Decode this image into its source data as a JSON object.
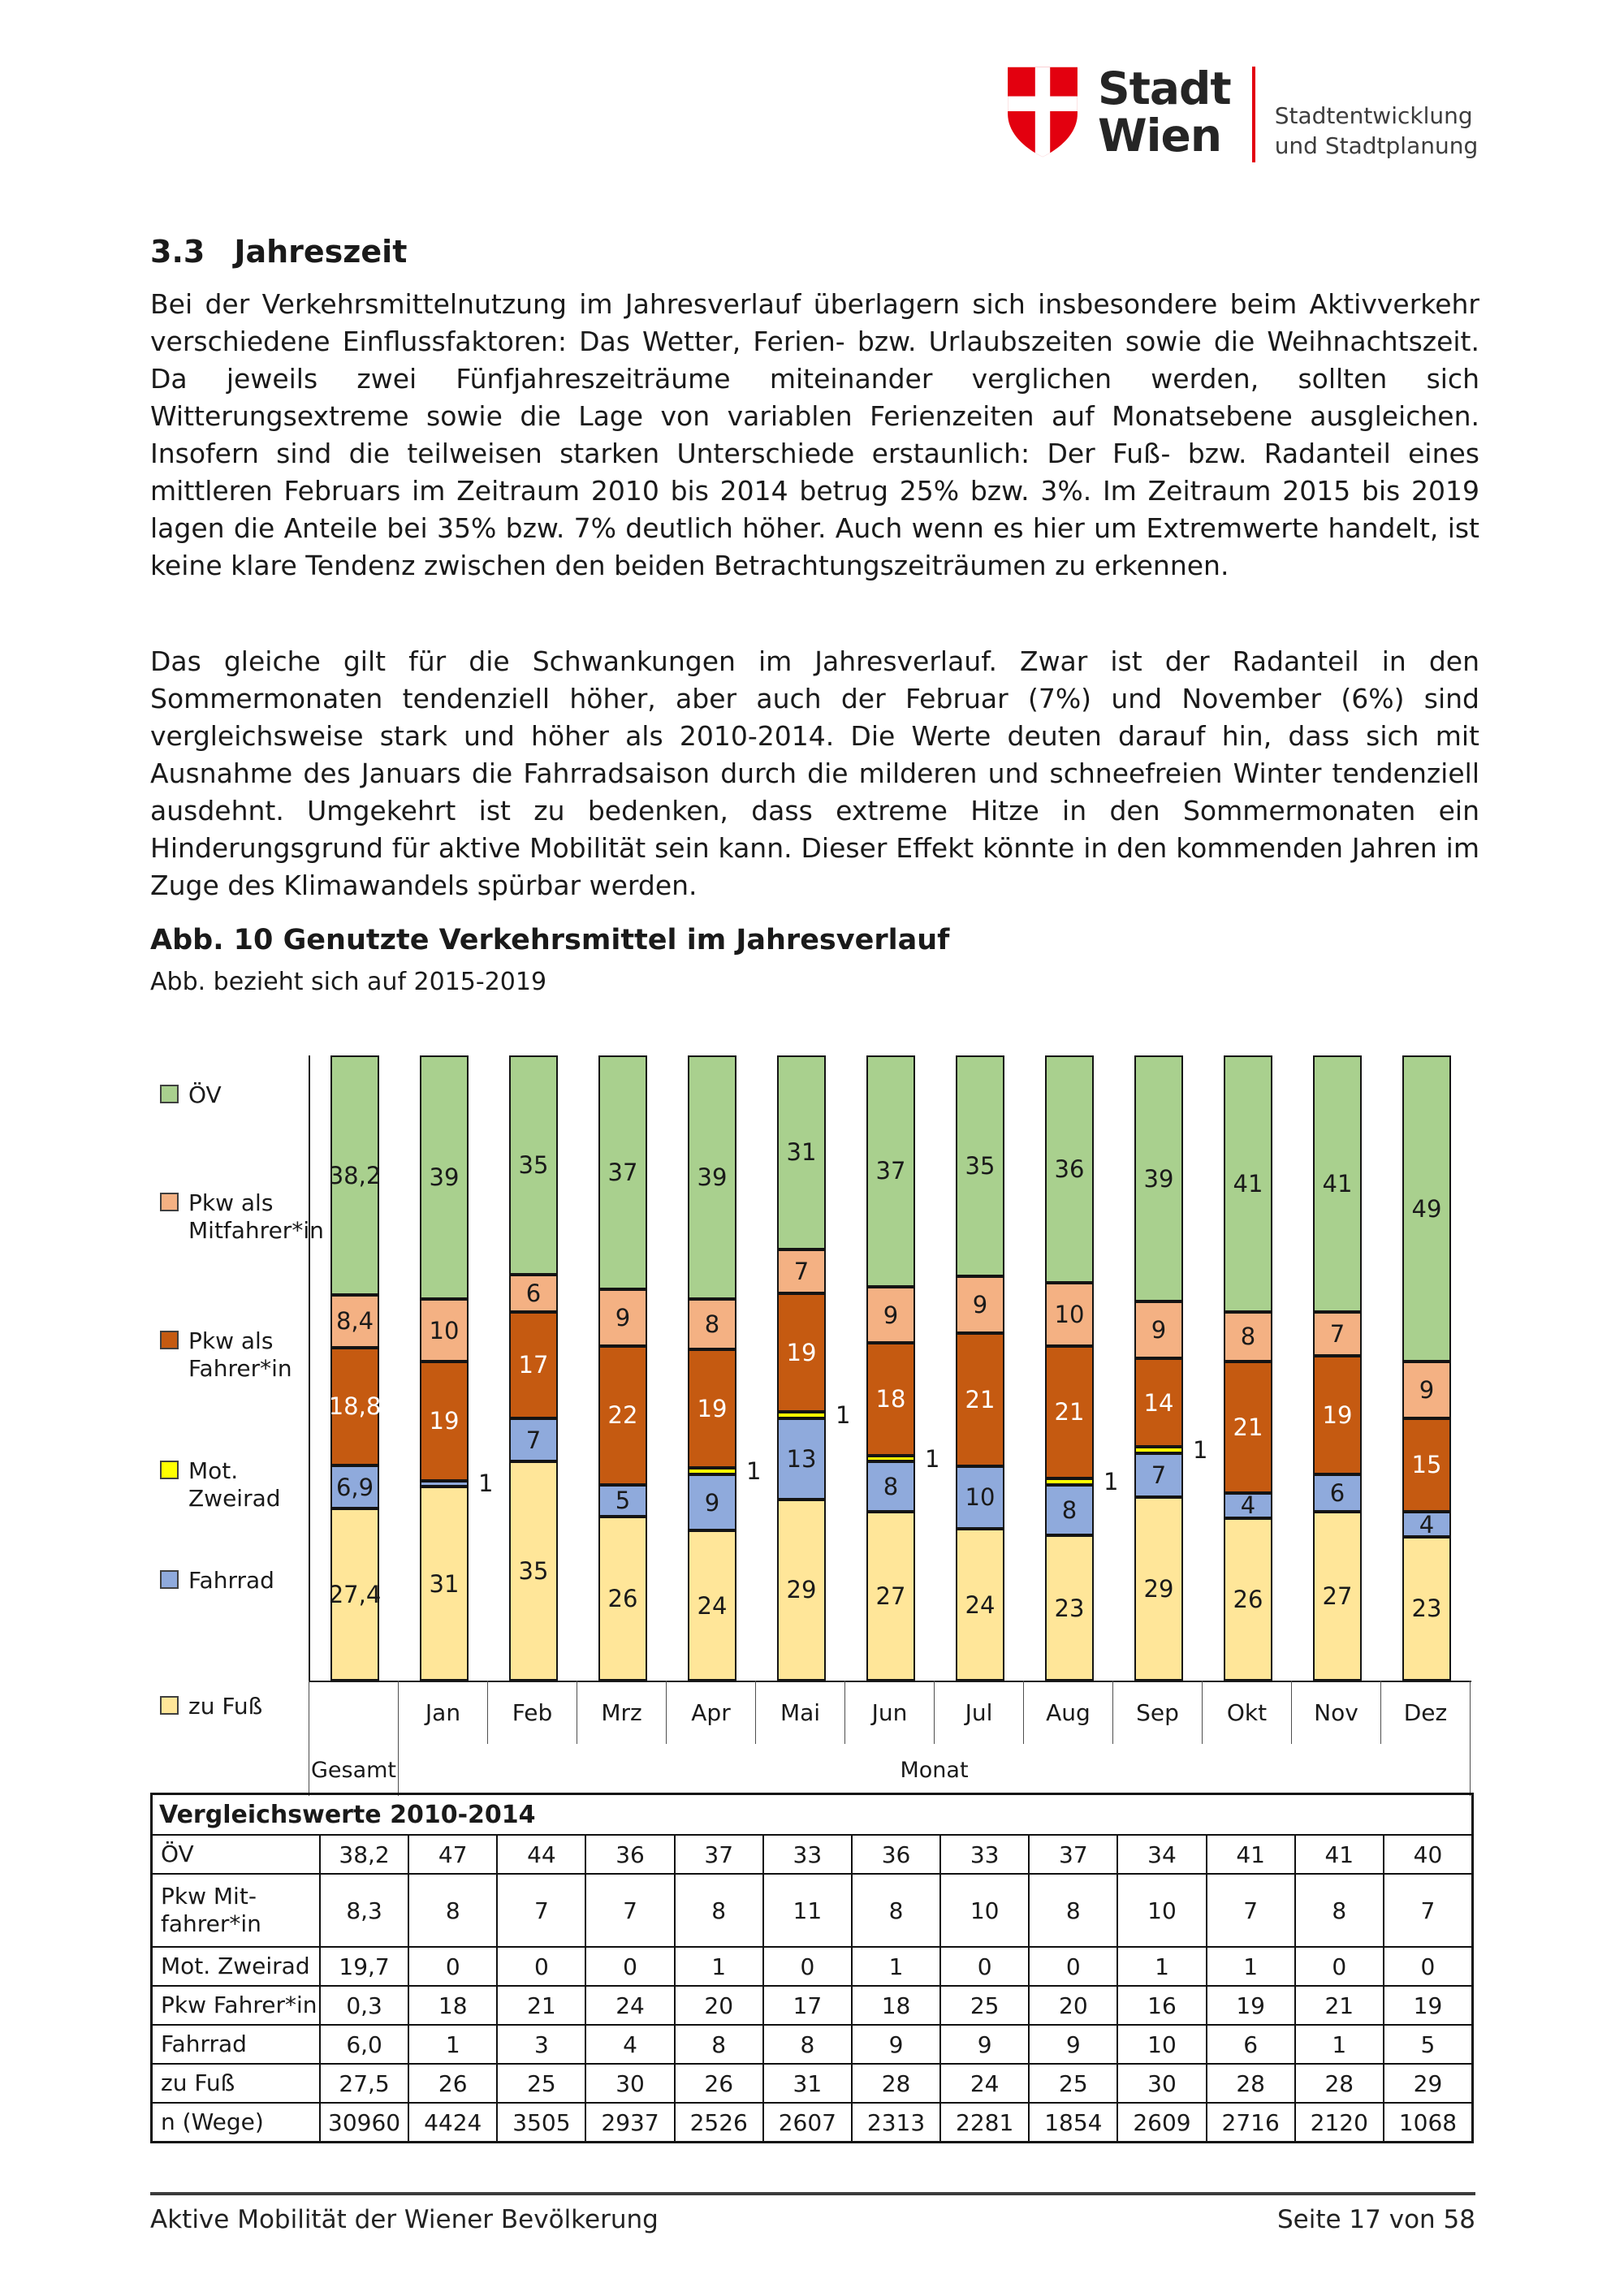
{
  "header": {
    "title_line1": "Stadt",
    "title_line2": "Wien",
    "subtitle_line1": "Stadtentwicklung",
    "subtitle_line2": "und Stadtplanung",
    "brand_red": "#e3000f"
  },
  "section": {
    "number": "3.3",
    "title": "Jahreszeit",
    "paragraph1": "Bei der Verkehrsmittelnutzung im Jahresverlauf überlagern sich insbesondere beim Aktivverkehr verschiedene Einflussfaktoren: Das Wetter, Ferien- bzw. Urlaubszeiten sowie die Weihnachtszeit. Da jeweils zwei Fünfjahreszeiträume miteinander verglichen werden, sollten sich Witterungsextreme sowie die Lage von variablen Ferienzeiten auf Monatsebene ausgleichen. Insofern sind die teilweisen starken Unterschiede erstaunlich: Der Fuß- bzw. Radanteil eines mittleren Februars im Zeitraum 2010 bis 2014 betrug 25% bzw. 3%. Im Zeitraum 2015 bis 2019 lagen die Anteile bei 35% bzw. 7% deutlich höher. Auch wenn es hier um Extremwerte handelt, ist keine klare Tendenz zwischen den beiden Betrachtungszeiträumen zu erkennen.",
    "paragraph2": "Das gleiche gilt für die Schwankungen im Jahresverlauf. Zwar ist der Radanteil in den Sommermonaten tendenziell höher, aber auch der Februar (7%) und November (6%) sind vergleichsweise stark und höher als 2010-2014. Die Werte deuten darauf hin, dass sich mit Ausnahme des Januars die Fahrradsaison durch die milderen und schneefreien Winter tendenziell ausdehnt. Umgekehrt ist zu bedenken, dass extreme Hitze in den Sommermonaten ein Hinderungsgrund für aktive Mobilität sein kann. Dieser Effekt könnte in den kommenden Jahren im Zuge des Klimawandels spürbar werden."
  },
  "figure": {
    "caption": "Abb. 10 Genutzte Verkehrsmittel im Jahresverlauf",
    "note": "Abb. bezieht sich auf 2015-2019"
  },
  "chart_data": {
    "type": "bar",
    "stacked": true,
    "unit": "percent",
    "title": "Abb. 10 Genutzte Verkehrsmittel im Jahresverlauf",
    "subtitle": "Abb. bezieht sich auf 2015-2019",
    "categories": [
      "Gesamt",
      "Jan",
      "Feb",
      "Mrz",
      "Apr",
      "Mai",
      "Jun",
      "Jul",
      "Aug",
      "Sep",
      "Okt",
      "Nov",
      "Dez"
    ],
    "x_group_labels": [
      "Gesamt",
      "Monat"
    ],
    "legend_position": "left",
    "legend": [
      {
        "label": "ÖV",
        "color": "#a9d08e"
      },
      {
        "label": "Pkw als\nMitfahrer*in",
        "color": "#f4b183"
      },
      {
        "label": "Pkw als\nFahrer*in",
        "color": "#c55a11"
      },
      {
        "label": "Mot. Zweirad",
        "color": "#ffff00"
      },
      {
        "label": "Fahrrad",
        "color": "#8faadc"
      },
      {
        "label": "zu Fuß",
        "color": "#ffe699"
      }
    ],
    "series": [
      {
        "name": "zu Fuß",
        "color": "#ffe699",
        "label_color": "#1a1a1a",
        "values": [
          27.4,
          31,
          35,
          26,
          24,
          29,
          27,
          24,
          23,
          29,
          26,
          27,
          23
        ],
        "labels": [
          "27,4",
          "31",
          "35",
          "26",
          "24",
          "29",
          "27",
          "24",
          "23",
          "29",
          "26",
          "27",
          "23"
        ]
      },
      {
        "name": "Fahrrad",
        "color": "#8faadc",
        "label_color": "#1a1a1a",
        "values": [
          6.9,
          1,
          7,
          5,
          9,
          13,
          8,
          10,
          8,
          7,
          4,
          6,
          4
        ],
        "labels": [
          "6,9",
          "1",
          "7",
          "5",
          "9",
          "13",
          "8",
          "10",
          "8",
          "7",
          "4",
          "6",
          "4"
        ]
      },
      {
        "name": "Mot. Zweirad",
        "color": "#ffff00",
        "label_color": "#1a1a1a",
        "values": [
          0,
          0,
          0,
          0,
          1,
          1,
          1,
          0,
          1,
          1,
          0,
          0,
          0
        ],
        "labels": [
          "",
          "",
          "",
          "",
          "1",
          "1",
          "1",
          "",
          "1",
          "1",
          "",
          "",
          ""
        ]
      },
      {
        "name": "Pkw als Fahrer*in",
        "color": "#c55a11",
        "label_color": "#ffffff",
        "values": [
          18.8,
          19,
          17,
          22,
          19,
          19,
          18,
          21,
          21,
          14,
          21,
          19,
          15
        ],
        "labels": [
          "18,8",
          "19",
          "17",
          "22",
          "19",
          "19",
          "18",
          "21",
          "21",
          "14",
          "21",
          "19",
          "15"
        ]
      },
      {
        "name": "Pkw als Mitfahrer*in",
        "color": "#f4b183",
        "label_color": "#1a1a1a",
        "values": [
          8.4,
          10,
          6,
          9,
          8,
          7,
          9,
          9,
          10,
          9,
          8,
          7,
          9
        ],
        "labels": [
          "8,4",
          "10",
          "6",
          "9",
          "8",
          "7",
          "9",
          "9",
          "10",
          "9",
          "8",
          "7",
          "9"
        ]
      },
      {
        "name": "ÖV",
        "color": "#a9d08e",
        "label_color": "#1a1a1a",
        "values": [
          38.2,
          39,
          35,
          37,
          39,
          31,
          37,
          35,
          36,
          39,
          41,
          41,
          49
        ],
        "labels": [
          "38,2",
          "39",
          "35",
          "37",
          "39",
          "31",
          "37",
          "35",
          "36",
          "39",
          "41",
          "41",
          "49"
        ]
      }
    ]
  },
  "table": {
    "title": "Vergleichswerte 2010-2014",
    "columns": [
      "Gesamt",
      "Jan",
      "Feb",
      "Mrz",
      "Apr",
      "Mai",
      "Jun",
      "Jul",
      "Aug",
      "Sep",
      "Okt",
      "Nov",
      "Dez"
    ],
    "rows": [
      {
        "label": "ÖV",
        "tall": false,
        "values": [
          "38,2",
          "47",
          "44",
          "36",
          "37",
          "33",
          "36",
          "33",
          "37",
          "34",
          "41",
          "41",
          "40"
        ]
      },
      {
        "label": "Pkw Mit-\nfahrer*in",
        "tall": true,
        "values": [
          "8,3",
          "8",
          "7",
          "7",
          "8",
          "11",
          "8",
          "10",
          "8",
          "10",
          "7",
          "8",
          "7"
        ]
      },
      {
        "label": "Mot. Zweirad",
        "tall": false,
        "values": [
          "19,7",
          "0",
          "0",
          "0",
          "1",
          "0",
          "1",
          "0",
          "0",
          "1",
          "1",
          "0",
          "0"
        ]
      },
      {
        "label": "Pkw Fahrer*in",
        "tall": false,
        "values": [
          "0,3",
          "18",
          "21",
          "24",
          "20",
          "17",
          "18",
          "25",
          "20",
          "16",
          "19",
          "21",
          "19"
        ]
      },
      {
        "label": "Fahrrad",
        "tall": false,
        "values": [
          "6,0",
          "1",
          "3",
          "4",
          "8",
          "8",
          "9",
          "9",
          "9",
          "10",
          "6",
          "1",
          "5"
        ]
      },
      {
        "label": "zu Fuß",
        "tall": false,
        "values": [
          "27,5",
          "26",
          "25",
          "30",
          "26",
          "31",
          "28",
          "24",
          "25",
          "30",
          "28",
          "28",
          "29"
        ]
      },
      {
        "label": "n (Wege)",
        "tall": false,
        "values": [
          "30960",
          "4424",
          "3505",
          "2937",
          "2526",
          "2607",
          "2313",
          "2281",
          "1854",
          "2609",
          "2716",
          "2120",
          "1068"
        ]
      }
    ]
  },
  "footer": {
    "left": "Aktive Mobilität der Wiener Bevölkerung",
    "right": "Seite 17 von 58"
  }
}
